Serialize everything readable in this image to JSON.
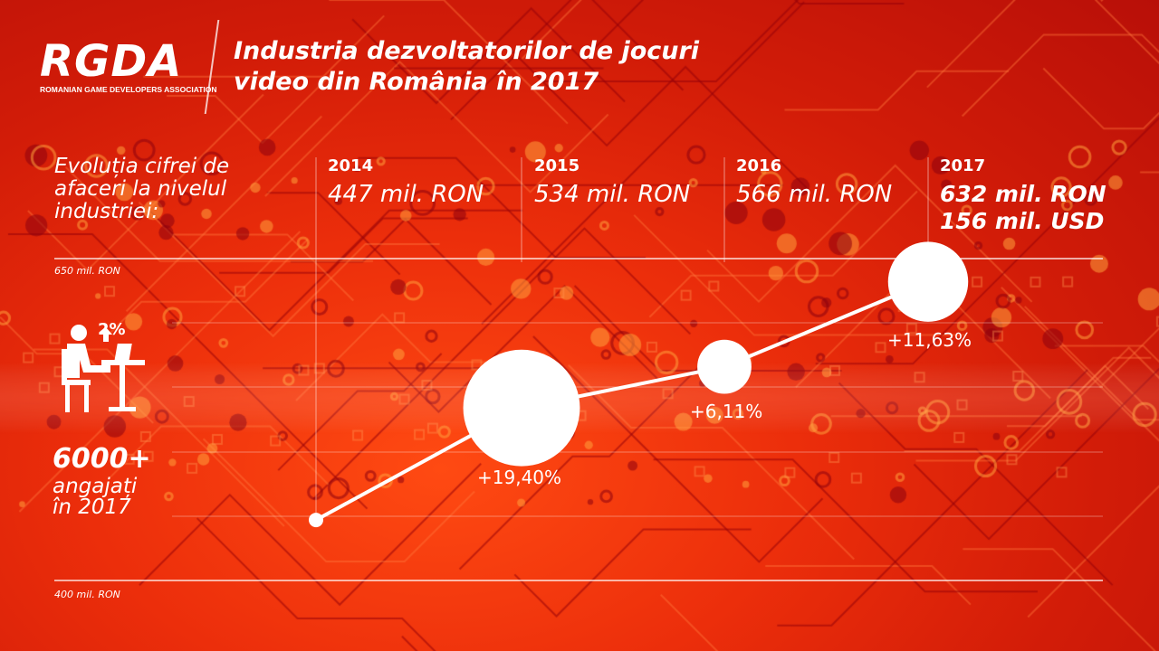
{
  "logo": {
    "text": "RGDA",
    "subtitle": "ROMANIAN GAME DEVELOPERS ASSOCIATION"
  },
  "title": "Industria dezvoltatorilor de jocuri video din România în 2017",
  "chart_label": "Evoluția cifrei de afaceri la nivelul industriei:",
  "employees": {
    "growth": "2%",
    "count": "6000+",
    "label": "angajați în 2017"
  },
  "colors": {
    "background": "#e0240a",
    "line": "#ffffff"
  },
  "chart_data": {
    "type": "line",
    "title": "",
    "xlabel": "",
    "ylabel": "",
    "ylim": [
      400,
      650
    ],
    "ylim_labels": {
      "max": "650 mil. RON",
      "min": "400 mil. RON"
    },
    "categories": [
      "2014",
      "2015",
      "2016",
      "2017"
    ],
    "values": [
      447,
      534,
      566,
      632
    ],
    "value_labels": [
      "447 mil. RON",
      "534 mil. RON",
      "566 mil. RON",
      "632 mil. RON"
    ],
    "extra_label_2017": "156 mil. USD",
    "growth_labels": [
      "",
      "+19,40%",
      "+6,11%",
      "+11,63%"
    ],
    "growth_values": [
      null,
      19.4,
      6.11,
      11.63
    ],
    "grid": true
  }
}
